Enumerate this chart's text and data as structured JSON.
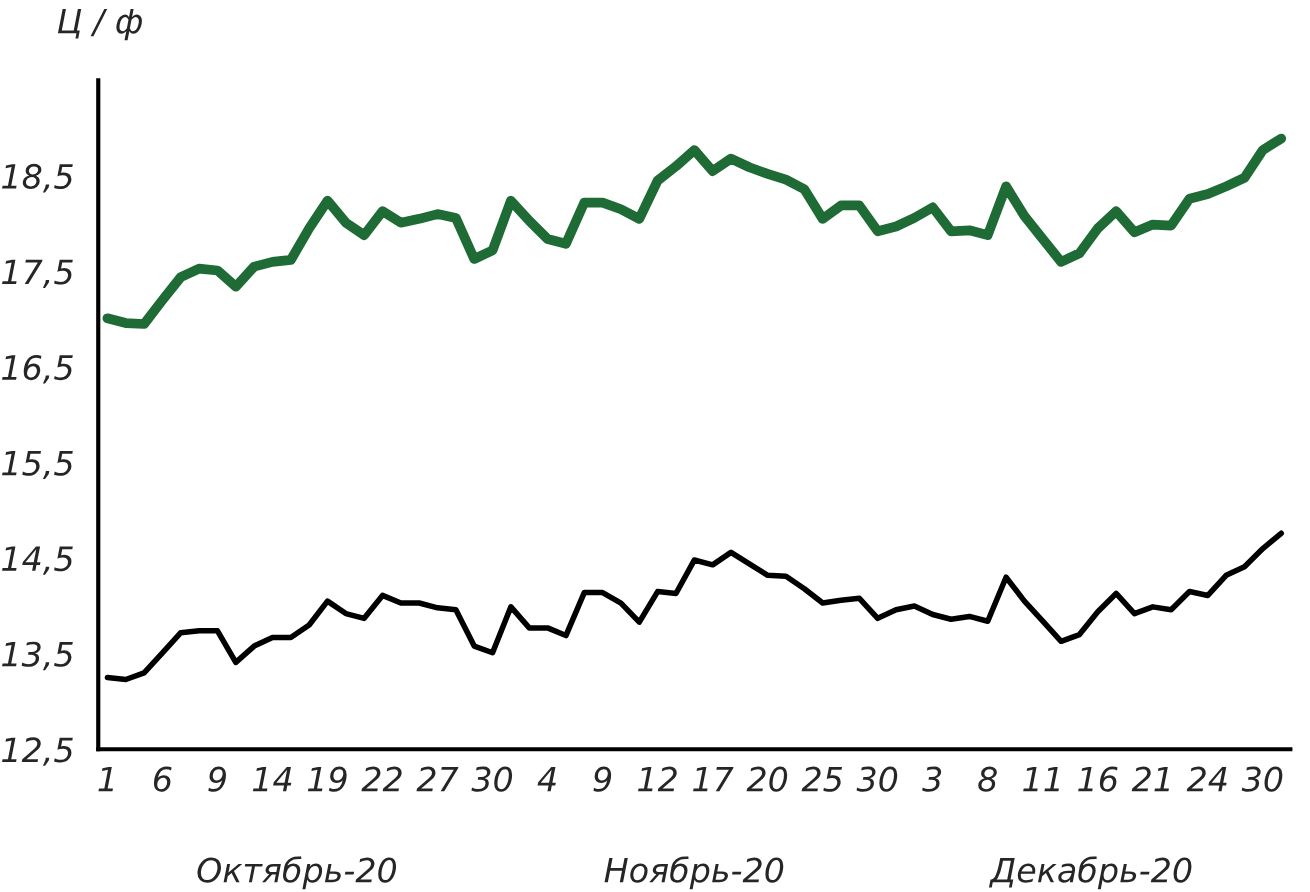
{
  "chart_data": {
    "type": "line",
    "ylabel": "Ц / ф",
    "categories": [
      "1",
      null,
      null,
      "6",
      null,
      null,
      "9",
      null,
      null,
      "14",
      null,
      null,
      "19",
      null,
      null,
      "22",
      null,
      null,
      "27",
      null,
      null,
      "30",
      null,
      null,
      "4",
      null,
      null,
      "9",
      null,
      null,
      "12",
      null,
      null,
      "17",
      null,
      null,
      "20",
      null,
      null,
      "25",
      null,
      null,
      "30",
      null,
      null,
      "3",
      null,
      null,
      "8",
      null,
      null,
      "11",
      null,
      null,
      "16",
      null,
      null,
      "21",
      null,
      null,
      "24",
      null,
      null,
      "30",
      null
    ],
    "series": [
      {
        "color": "#1e6b35",
        "values": [
          17.01,
          16.96,
          16.95,
          17.2,
          17.44,
          17.53,
          17.51,
          17.34,
          17.55,
          17.6,
          17.62,
          17.95,
          18.24,
          18.01,
          17.88,
          18.13,
          18.01,
          18.05,
          18.1,
          18.06,
          17.63,
          17.72,
          18.24,
          18.03,
          17.84,
          17.79,
          18.22,
          18.22,
          18.15,
          18.05,
          18.45,
          18.6,
          18.77,
          18.55,
          18.68,
          18.59,
          18.52,
          18.46,
          18.36,
          18.05,
          18.19,
          18.19,
          17.92,
          17.97,
          18.06,
          18.17,
          17.92,
          17.93,
          17.88,
          18.39,
          18.08,
          17.84,
          17.6,
          17.69,
          17.95,
          18.13,
          17.91,
          17.99,
          17.98,
          18.26,
          18.31,
          18.39,
          18.48,
          18.77,
          18.89
        ]
      },
      {
        "color": "#000000",
        "values": [
          13.25,
          13.23,
          13.3,
          13.51,
          13.72,
          13.74,
          13.74,
          13.41,
          13.58,
          13.67,
          13.67,
          13.8,
          14.05,
          13.92,
          13.87,
          14.11,
          14.03,
          14.03,
          13.98,
          13.96,
          13.58,
          13.51,
          13.99,
          13.77,
          13.77,
          13.69,
          14.14,
          14.14,
          14.03,
          13.83,
          14.15,
          14.13,
          14.48,
          14.43,
          14.56,
          14.44,
          14.32,
          14.31,
          14.18,
          14.03,
          14.06,
          14.08,
          13.87,
          13.96,
          14.0,
          13.91,
          13.86,
          13.89,
          13.84,
          14.3,
          14.05,
          13.84,
          13.63,
          13.7,
          13.94,
          14.13,
          13.92,
          13.99,
          13.96,
          14.15,
          14.11,
          14.32,
          14.41,
          14.6,
          14.76
        ]
      }
    ],
    "ylim": [
      12.5,
      19.5
    ],
    "yticks": [
      {
        "value": 12.5,
        "label": "12,5"
      },
      {
        "value": 13.5,
        "label": "13,5"
      },
      {
        "value": 14.5,
        "label": "14,5"
      },
      {
        "value": 15.5,
        "label": "15,5"
      },
      {
        "value": 16.5,
        "label": "16,5"
      },
      {
        "value": 17.5,
        "label": "17,5"
      },
      {
        "value": 18.5,
        "label": "18,5"
      }
    ],
    "annotations": [
      "Октябрь-20",
      "Ноябрь-20",
      "Декабрь-20"
    ],
    "grid": false,
    "legend": false
  }
}
